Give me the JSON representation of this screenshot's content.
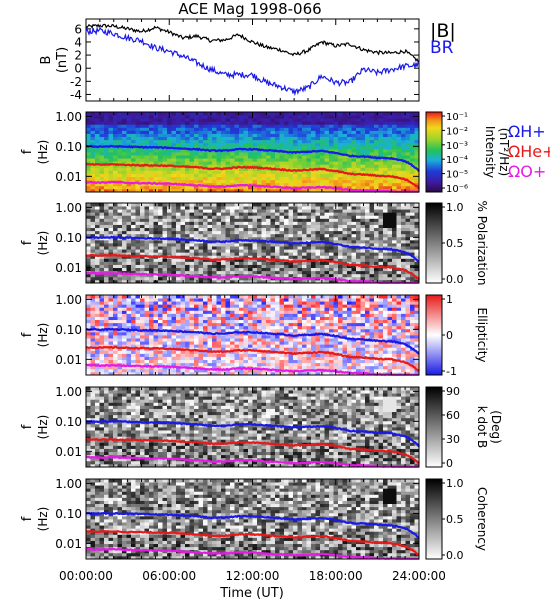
{
  "title": "ACE Mag 1998-066",
  "colors": {
    "b_total": "#000000",
    "b_r": "#1a1ae6",
    "cyclotron_h": "#1a1ae6",
    "cyclotron_he": "#e61a1a",
    "cyclotron_o": "#e61ae6"
  },
  "x_axis": {
    "label": "Time (UT)",
    "tick_labels": [
      "00:00:00",
      "06:00:00",
      "12:00:00",
      "18:00:00",
      "24:00:00"
    ],
    "tick_hours": [
      0,
      6,
      12,
      18,
      24
    ],
    "range_hours": [
      0,
      24
    ]
  },
  "chart_data": [
    {
      "type": "line",
      "panel": "magnetic-field",
      "ylabel": "B",
      "yunit": "(nT)",
      "ylim": [
        -5,
        7.5
      ],
      "ytick_values": [
        -4,
        -2,
        0,
        2,
        4,
        6
      ],
      "ytick_labels": [
        "-4",
        "-2",
        "0",
        "2",
        "4",
        "6"
      ],
      "x_hours": [
        0,
        1,
        2,
        3,
        4,
        5,
        6,
        7,
        8,
        9,
        10,
        11,
        12,
        13,
        14,
        15,
        16,
        17,
        18,
        19,
        20,
        21,
        22,
        23,
        24
      ],
      "series": [
        {
          "name": "|B|",
          "values": [
            6.3,
            6.5,
            6.4,
            6.0,
            5.6,
            6.2,
            5.5,
            4.6,
            4.9,
            4.2,
            4.3,
            5.1,
            4.0,
            3.2,
            2.8,
            2.0,
            2.7,
            4.0,
            3.4,
            3.7,
            2.8,
            2.4,
            2.3,
            2.6,
            1.0
          ]
        },
        {
          "name": "BR",
          "values": [
            5.6,
            5.7,
            5.3,
            4.6,
            4.2,
            3.1,
            2.6,
            1.8,
            0.8,
            -0.2,
            -1.0,
            -1.0,
            -1.0,
            -2.2,
            -2.8,
            -3.6,
            -3.0,
            -1.2,
            -2.2,
            -2.2,
            -0.2,
            -0.7,
            -0.2,
            0.3,
            0.5
          ]
        }
      ]
    },
    {
      "type": "heatmap",
      "panel": "intensity",
      "ylabel": "f",
      "yunit": "(Hz)",
      "yscale": "log",
      "ylim": [
        0.003,
        1.4
      ],
      "ytick_labels": [
        "1.00",
        "0.10",
        "0.01"
      ],
      "colorbar": {
        "label": "Intensity",
        "unit": "(nT²/Hz)",
        "scale": "log",
        "tick_labels": [
          "10⁻¹",
          "10⁻²",
          "10⁻³",
          "10⁻⁴",
          "10⁻⁵",
          "10⁻⁶"
        ]
      }
    },
    {
      "type": "heatmap",
      "panel": "polarization",
      "ylabel": "f",
      "yunit": "(Hz)",
      "yscale": "log",
      "ylim": [
        0.003,
        1.4
      ],
      "ytick_labels": [
        "1.00",
        "0.10",
        "0.01"
      ],
      "colorbar": {
        "label": "% Polarization",
        "unit": "",
        "range": [
          0,
          1
        ],
        "tick_labels": [
          "1.0",
          "0.5",
          "0.0"
        ]
      }
    },
    {
      "type": "heatmap",
      "panel": "ellipticity",
      "ylabel": "f",
      "yunit": "(Hz)",
      "yscale": "log",
      "ylim": [
        0.003,
        1.4
      ],
      "ytick_labels": [
        "1.00",
        "0.10",
        "0.01"
      ],
      "colorbar": {
        "label": "Ellipticity",
        "unit": "",
        "range": [
          -1,
          1
        ],
        "tick_labels": [
          "1",
          "0",
          "-1"
        ]
      }
    },
    {
      "type": "heatmap",
      "panel": "wave-normal-angle",
      "ylabel": "f",
      "yunit": "(Hz)",
      "yscale": "log",
      "ylim": [
        0.003,
        1.4
      ],
      "ytick_labels": [
        "1.00",
        "0.10",
        "0.01"
      ],
      "colorbar": {
        "label": "k dot B",
        "unit": "(Deg)",
        "range": [
          0,
          90
        ],
        "tick_labels": [
          "90",
          "60",
          "30",
          "0"
        ]
      }
    },
    {
      "type": "heatmap",
      "panel": "coherency",
      "ylabel": "f",
      "yunit": "(Hz)",
      "yscale": "log",
      "ylim": [
        0.003,
        1.4
      ],
      "ytick_labels": [
        "1.00",
        "0.10",
        "0.01"
      ],
      "colorbar": {
        "label": "Coherency",
        "unit": "",
        "range": [
          0,
          1
        ],
        "tick_labels": [
          "1.0",
          "0.5",
          "0.0"
        ]
      }
    }
  ],
  "cyclotron_overlay": {
    "x_hours": [
      0,
      1,
      2,
      3,
      4,
      5,
      6,
      7,
      8,
      9,
      10,
      11,
      12,
      13,
      14,
      15,
      16,
      17,
      18,
      19,
      20,
      21,
      22,
      23,
      24
    ],
    "series": [
      {
        "name": "ΩH+",
        "values": [
          0.1,
          0.098,
          0.1,
          0.097,
          0.094,
          0.092,
          0.09,
          0.084,
          0.08,
          0.072,
          0.072,
          0.08,
          0.08,
          0.074,
          0.068,
          0.062,
          0.066,
          0.07,
          0.06,
          0.048,
          0.046,
          0.042,
          0.04,
          0.032,
          0.015
        ]
      },
      {
        "name": "ΩHe+",
        "values": [
          0.025,
          0.0245,
          0.025,
          0.024,
          0.0235,
          0.023,
          0.0225,
          0.021,
          0.02,
          0.018,
          0.018,
          0.02,
          0.02,
          0.0185,
          0.017,
          0.0155,
          0.0165,
          0.0175,
          0.015,
          0.012,
          0.0115,
          0.0105,
          0.01,
          0.008,
          0.004
        ]
      },
      {
        "name": "ΩO+",
        "values": [
          0.0064,
          0.0062,
          0.0064,
          0.0061,
          0.0059,
          0.0058,
          0.0057,
          0.0053,
          0.005,
          0.0046,
          0.0046,
          0.005,
          0.005,
          0.0046,
          0.0043,
          0.004,
          0.0042,
          0.0044,
          0.004,
          0.0035,
          0.0034,
          0.0032,
          0.0031,
          0.003,
          0.003
        ]
      }
    ]
  }
}
